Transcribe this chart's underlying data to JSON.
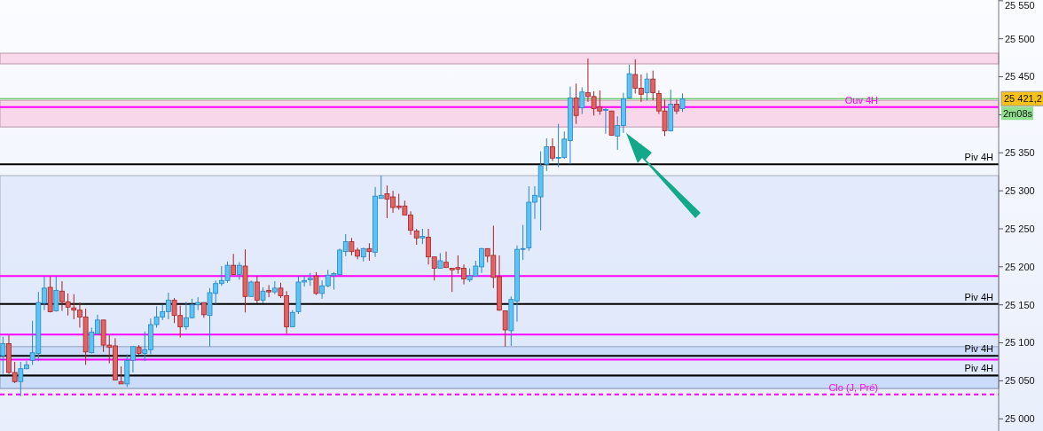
{
  "chart_data": {
    "type": "candlestick",
    "categories": [
      null,
      null,
      null,
      null,
      null,
      null,
      null,
      null,
      null,
      null,
      null,
      null,
      null,
      null,
      null,
      null,
      null,
      null,
      null,
      null,
      null,
      null,
      null,
      null,
      null,
      null,
      null,
      null,
      null,
      null,
      null,
      null,
      null,
      null,
      null,
      null,
      null,
      null,
      null,
      null,
      null,
      null,
      null,
      null,
      null,
      null,
      null,
      null,
      null,
      null,
      null,
      null,
      null,
      null,
      null,
      null,
      null,
      null,
      null,
      null,
      null,
      null,
      null,
      null,
      null,
      null,
      null,
      null,
      null,
      null,
      null,
      null,
      null,
      null,
      null,
      null,
      null,
      null,
      null,
      null,
      null,
      null,
      null,
      null,
      null,
      null,
      null,
      null,
      null,
      null,
      null,
      null,
      null,
      null,
      null,
      null,
      null,
      null,
      null,
      null,
      null,
      null,
      null,
      null,
      null,
      null,
      null,
      null,
      null,
      null,
      null,
      null,
      null,
      null,
      null,
      null,
      null,
      null,
      null,
      null,
      null,
      null,
      null,
      null,
      null,
      null,
      null,
      null,
      null,
      null,
      null,
      null,
      null,
      null,
      null,
      null,
      null,
      null,
      null,
      null,
      null,
      null,
      null,
      null,
      null,
      null,
      null,
      null,
      null,
      null,
      null,
      null,
      null,
      null,
      null,
      null,
      null,
      null,
      null,
      null,
      null,
      null,
      null,
      null,
      null,
      null,
      null,
      null,
      null
    ],
    "ohlc": [
      [
        25083,
        25108,
        25059,
        25099
      ],
      [
        25099,
        25110,
        25059,
        25061
      ],
      [
        25061,
        25075,
        25047,
        25049
      ],
      [
        25049,
        25075,
        25030,
        25066
      ],
      [
        25066,
        25076,
        25065,
        25071
      ],
      [
        25077,
        25129,
        25071,
        25087
      ],
      [
        25086,
        25167,
        25076,
        25153
      ],
      [
        25152,
        25187,
        25143,
        25172
      ],
      [
        25173,
        25187,
        25140,
        25141
      ],
      [
        25142,
        25187,
        25141,
        25169
      ],
      [
        25168,
        25181,
        25142,
        25154
      ],
      [
        25154,
        25165,
        25136,
        25147
      ],
      [
        25146,
        25164,
        25131,
        25143
      ],
      [
        25143,
        25153,
        25120,
        25134
      ],
      [
        25134,
        25145,
        25071,
        25088
      ],
      [
        25087,
        25120,
        25086,
        25114
      ],
      [
        25112,
        25137,
        25111,
        25130
      ],
      [
        25130,
        25130,
        25088,
        25097
      ],
      [
        25097,
        25110,
        25073,
        25094
      ],
      [
        25096,
        25106,
        25051,
        25051
      ],
      [
        25049,
        25069,
        25046,
        25046
      ],
      [
        25046,
        25085,
        25042,
        25077
      ],
      [
        25077,
        25095,
        25061,
        25095
      ],
      [
        25094,
        25097,
        25084,
        25086
      ],
      [
        25086,
        25115,
        25076,
        25091
      ],
      [
        25091,
        25132,
        25085,
        25124
      ],
      [
        25124,
        25148,
        25120,
        25134
      ],
      [
        25134,
        25150,
        25130,
        25141
      ],
      [
        25141,
        25166,
        25131,
        25156
      ],
      [
        25156,
        25159,
        25126,
        25136
      ],
      [
        25136,
        25149,
        25107,
        25121
      ],
      [
        25121,
        25154,
        25117,
        25133
      ],
      [
        25133,
        25158,
        25132,
        25150
      ],
      [
        25150,
        25160,
        25143,
        25153
      ],
      [
        25153,
        25153,
        25133,
        25137
      ],
      [
        25136,
        25172,
        25095,
        25166
      ],
      [
        25165,
        25182,
        25151,
        25178
      ],
      [
        25178,
        25201,
        25175,
        25182
      ],
      [
        25182,
        25207,
        25179,
        25202
      ],
      [
        25202,
        25217,
        25190,
        25190
      ],
      [
        25190,
        25206,
        25183,
        25202
      ],
      [
        25201,
        25223,
        25140,
        25161
      ],
      [
        25161,
        25182,
        25161,
        25180
      ],
      [
        25180,
        25188,
        25152,
        25156
      ],
      [
        25156,
        25173,
        25152,
        25168
      ],
      [
        25169,
        25176,
        25160,
        25167
      ],
      [
        25167,
        25181,
        25164,
        25172
      ],
      [
        25172,
        25179,
        25159,
        25162
      ],
      [
        25162,
        25168,
        25112,
        25121
      ],
      [
        25121,
        25143,
        25121,
        25140
      ],
      [
        25141,
        25188,
        25138,
        25180
      ],
      [
        25180,
        25188,
        25174,
        25182
      ],
      [
        25183,
        25192,
        25175,
        25185
      ],
      [
        25188,
        25193,
        25163,
        25165
      ],
      [
        25165,
        25182,
        25158,
        25175
      ],
      [
        25175,
        25196,
        25173,
        25189
      ],
      [
        25189,
        25193,
        25170,
        25191
      ],
      [
        25190,
        25224,
        25190,
        25222
      ],
      [
        25220,
        25243,
        25214,
        25233
      ],
      [
        25233,
        25238,
        25215,
        25220
      ],
      [
        25222,
        25225,
        25210,
        25214
      ],
      [
        25213,
        25225,
        25207,
        25224
      ],
      [
        25224,
        25231,
        25208,
        25220
      ],
      [
        25219,
        25305,
        25213,
        25293
      ],
      [
        25290,
        25320,
        25290,
        25294
      ],
      [
        25296,
        25307,
        25264,
        25289
      ],
      [
        25292,
        25300,
        25271,
        25278
      ],
      [
        25280,
        25296,
        25275,
        25278
      ],
      [
        25280,
        25287,
        25268,
        25268
      ],
      [
        25268,
        25273,
        25242,
        25248
      ],
      [
        25247,
        25250,
        25229,
        25238
      ],
      [
        25238,
        25250,
        25230,
        25240
      ],
      [
        25239,
        25250,
        25203,
        25213
      ],
      [
        25213,
        25213,
        25182,
        25198
      ],
      [
        25198,
        25218,
        25198,
        25208
      ],
      [
        25206,
        25220,
        25199,
        25199
      ],
      [
        25198,
        25198,
        25167,
        25196
      ],
      [
        25199,
        25215,
        25191,
        25197
      ],
      [
        25198,
        25203,
        25177,
        25184
      ],
      [
        25183,
        25198,
        25180,
        25188
      ],
      [
        25188,
        25208,
        25188,
        25201
      ],
      [
        25200,
        25225,
        25192,
        25224
      ],
      [
        25224,
        25224,
        25206,
        25214
      ],
      [
        25215,
        25254,
        25172,
        25186
      ],
      [
        25187,
        25215,
        25142,
        25143
      ],
      [
        25142,
        25142,
        25095,
        25117
      ],
      [
        25116,
        25161,
        25096,
        25157
      ],
      [
        25155,
        25228,
        25128,
        25223
      ],
      [
        25223,
        25255,
        25209,
        25224
      ],
      [
        25225,
        25306,
        25221,
        25285
      ],
      [
        25285,
        25306,
        25263,
        25294
      ],
      [
        25292,
        25352,
        25248,
        25333
      ],
      [
        25335,
        25369,
        25326,
        25358
      ],
      [
        25358,
        25369,
        25339,
        25343
      ],
      [
        25343,
        25388,
        25331,
        25344
      ],
      [
        25344,
        25378,
        25342,
        25368
      ],
      [
        25366,
        25437,
        25335,
        25422
      ],
      [
        25422,
        25441,
        25388,
        25399
      ],
      [
        25409,
        25436,
        25401,
        25430
      ],
      [
        25429,
        25474,
        25417,
        25424
      ],
      [
        25424,
        25431,
        25399,
        25408
      ],
      [
        25410,
        25432,
        25400,
        25405
      ],
      [
        25407,
        25409,
        25375,
        25407
      ],
      [
        25405,
        25405,
        25373,
        25373
      ],
      [
        25372,
        25398,
        25354,
        25386
      ],
      [
        25386,
        25429,
        25376,
        25421
      ],
      [
        25422,
        25466,
        25422,
        25454
      ],
      [
        25453,
        25473,
        25428,
        25435
      ],
      [
        25435,
        25453,
        25417,
        25427
      ],
      [
        25429,
        25455,
        25419,
        25447
      ],
      [
        25447,
        25458,
        25419,
        25429
      ],
      [
        25428,
        25432,
        25401,
        25405
      ],
      [
        25405,
        25420,
        25372,
        25379
      ],
      [
        25379,
        25433,
        25378,
        25414
      ],
      [
        25414,
        25420,
        25401,
        25405
      ],
      [
        25408,
        25428,
        25404,
        25421
      ],
      null,
      null,
      null,
      null,
      null,
      null,
      null,
      null,
      null,
      null,
      null,
      null,
      null,
      null,
      null,
      null,
      null,
      null,
      null,
      null,
      null,
      null,
      null,
      null,
      null,
      null,
      null,
      null,
      null,
      null,
      null,
      null,
      null,
      null,
      null,
      null,
      null,
      null,
      null,
      null,
      null,
      null,
      null,
      null,
      null,
      null,
      null,
      null,
      null,
      null,
      null,
      null,
      null
    ],
    "ylim": [
      24984,
      25551
    ],
    "yticks": [
      {
        "value": 25000,
        "label": "25 000"
      },
      {
        "value": 25050,
        "label": "25 050"
      },
      {
        "value": 25100,
        "label": "25 100"
      },
      {
        "value": 25150,
        "label": "25 150"
      },
      {
        "value": 25200,
        "label": "25 200"
      },
      {
        "value": 25250,
        "label": "25 250"
      },
      {
        "value": 25300,
        "label": "25 300"
      },
      {
        "value": 25350,
        "label": "25 350"
      },
      {
        "value": 25400,
        "label": null
      },
      {
        "value": 25450,
        "label": "25 450"
      },
      {
        "value": 25500,
        "label": "25 500"
      },
      {
        "value": 25550,
        "label": "25 550"
      }
    ],
    "bands": [
      {
        "axis": "y",
        "from": 25040,
        "to": 25320,
        "color": "#dbe5fb"
      },
      {
        "axis": "y",
        "from": 25467,
        "to": 25481,
        "color": "#f9c9e2"
      },
      {
        "axis": "y",
        "from": 25384,
        "to": 25419,
        "color": "#f9c9e2"
      },
      {
        "axis": "y",
        "from": 25078,
        "to": 25095,
        "color": "#c2d5f9"
      },
      {
        "axis": "y",
        "from": 25040,
        "to": 25058,
        "color": "#c2d5f9"
      }
    ],
    "ref_lines": [
      {
        "axis": "y",
        "value": 25421.2,
        "label": "25 421,2",
        "color": "#33bb33"
      },
      {
        "axis": "y",
        "value": 25410,
        "label": "Ouv 4H",
        "color": "#ff00ff"
      },
      {
        "axis": "y",
        "value": 25335,
        "label": "Piv 4H",
        "color": "#000000"
      },
      {
        "axis": "y",
        "value": 25188,
        "color": "#ff00ff"
      },
      {
        "axis": "y",
        "value": 25151,
        "label": "Piv 4H",
        "color": "#000000"
      },
      {
        "axis": "y",
        "value": 25111,
        "color": "#ff00ff"
      },
      {
        "axis": "y",
        "value": 25083,
        "label": "Piv 4H",
        "color": "#000000"
      },
      {
        "axis": "y",
        "value": 25078,
        "color": "#ff00ff"
      },
      {
        "axis": "y",
        "value": 25057,
        "label": "Piv 4H",
        "color": "#000000"
      },
      {
        "axis": "y",
        "value": 25032,
        "label": "Clo (J, Pré)",
        "color": "#ff00ff",
        "line_style": "dashed"
      }
    ],
    "annotations": [
      "2m08s"
    ],
    "grid": false
  }
}
